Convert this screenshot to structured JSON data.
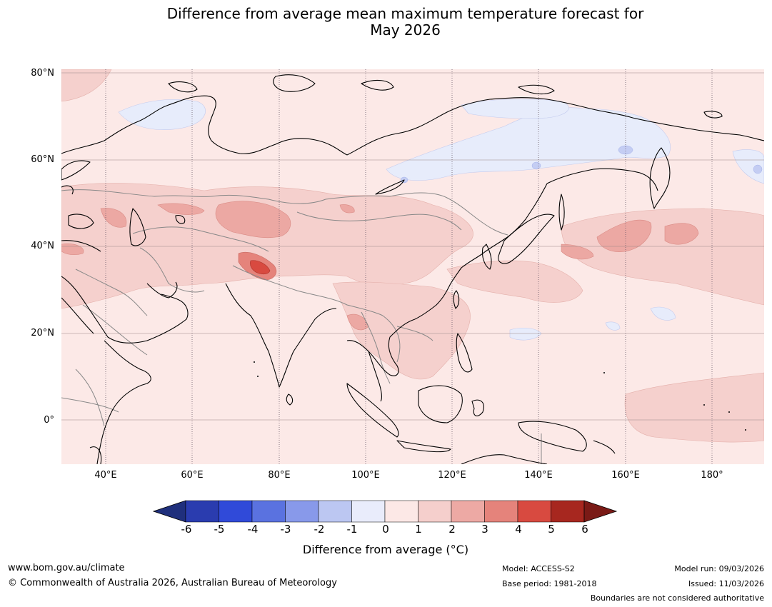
{
  "title": {
    "line1": "Difference from average mean maximum temperature forecast for",
    "line2": "May 2026"
  },
  "latitude_labels": [
    "80°N",
    "60°N",
    "40°N",
    "20°N",
    "0°"
  ],
  "longitude_labels": [
    "40°E",
    "60°E",
    "80°E",
    "100°E",
    "120°E",
    "140°E",
    "160°E",
    "180°"
  ],
  "colorbar": {
    "ticks": [
      "-6",
      "-5",
      "-4",
      "-3",
      "-2",
      "-1",
      "0",
      "1",
      "2",
      "3",
      "4",
      "5",
      "6"
    ],
    "colors": [
      "#1f2f7c",
      "#2a3caf",
      "#304ad9",
      "#5a72e0",
      "#8899ea",
      "#bcc7f2",
      "#e9ecfb",
      "#fce8e6",
      "#f5cfcc",
      "#eda9a4",
      "#e5837b",
      "#d84a40",
      "#a7271f",
      "#7a1a16"
    ],
    "title": "Difference from average (°C)"
  },
  "footer": {
    "website": "www.bom.gov.au/climate",
    "copyright": "© Commonwealth of Australia 2026, Australian Bureau of Meteorology",
    "model": "Model: ACCESS-S2",
    "base_period": "Base period: 1981-2018",
    "model_run": "Model run: 09/03/2026",
    "issued": "Issued: 11/03/2026",
    "disclaimer": "Boundaries are not considered authoritative"
  },
  "colors": {
    "background_anomaly": "#fce9e7",
    "warm_1_2": "#f5d0cd",
    "warm_2_3": "#eca8a3",
    "warm_3_4": "#e5837b",
    "warm_4_5": "#d84a40",
    "cool_0_1": "#e7ecfb",
    "cool_1_2": "#c4cdf3",
    "coast": "#000000",
    "border": "#888888"
  }
}
